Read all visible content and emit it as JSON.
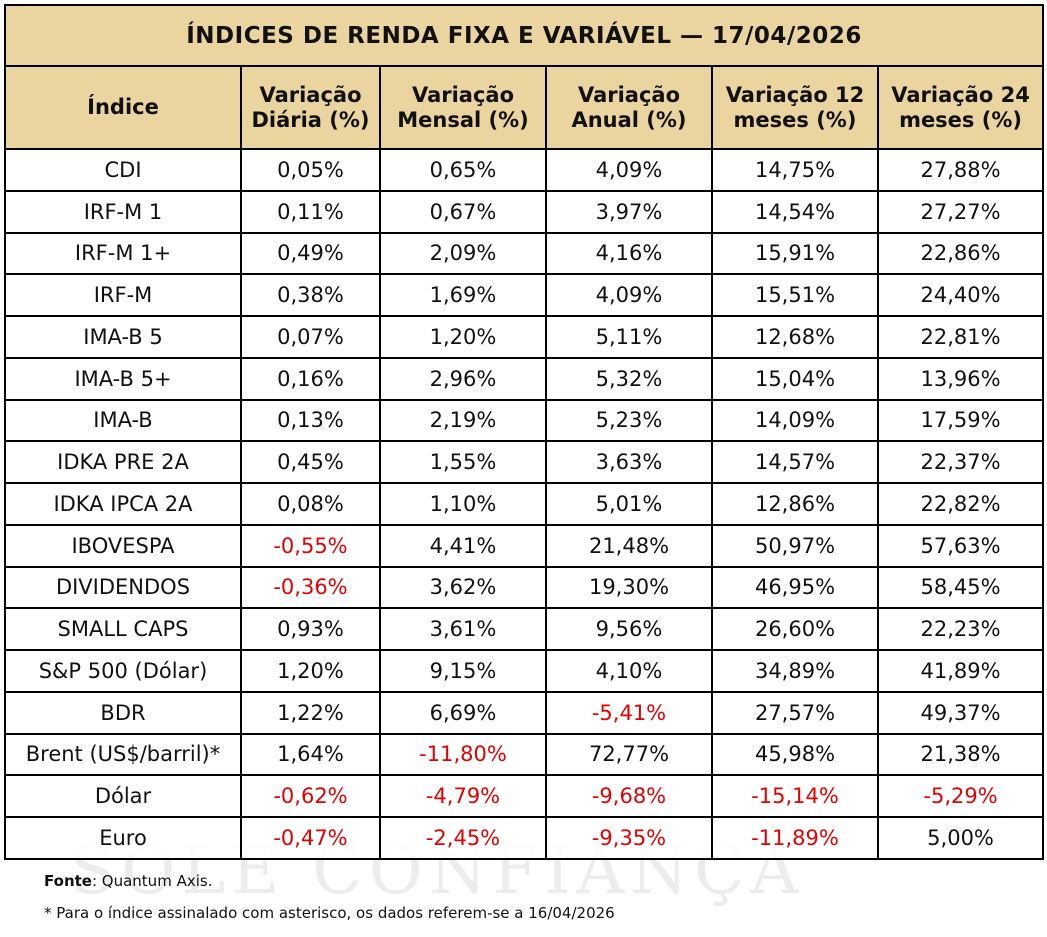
{
  "title": "ÍNDICES DE RENDA FIXA E VARIÁVEL — 17/04/2026",
  "columns": [
    "Índice",
    "Variação Diária (%)",
    "Variação Mensal (%)",
    "Variação Anual (%)",
    "Variação 12 meses (%)",
    "Variação 24 meses (%)"
  ],
  "rows": [
    {
      "name": "CDI",
      "values": [
        "0,05%",
        "0,65%",
        "4,09%",
        "14,75%",
        "27,88%"
      ]
    },
    {
      "name": "IRF-M 1",
      "values": [
        "0,11%",
        "0,67%",
        "3,97%",
        "14,54%",
        "27,27%"
      ]
    },
    {
      "name": "IRF-M 1+",
      "values": [
        "0,49%",
        "2,09%",
        "4,16%",
        "15,91%",
        "22,86%"
      ]
    },
    {
      "name": "IRF-M",
      "values": [
        "0,38%",
        "1,69%",
        "4,09%",
        "15,51%",
        "24,40%"
      ]
    },
    {
      "name": "IMA-B 5",
      "values": [
        "0,07%",
        "1,20%",
        "5,11%",
        "12,68%",
        "22,81%"
      ]
    },
    {
      "name": "IMA-B 5+",
      "values": [
        "0,16%",
        "2,96%",
        "5,32%",
        "15,04%",
        "13,96%"
      ]
    },
    {
      "name": "IMA-B",
      "values": [
        "0,13%",
        "2,19%",
        "5,23%",
        "14,09%",
        "17,59%"
      ]
    },
    {
      "name": "IDKA PRE 2A",
      "values": [
        "0,45%",
        "1,55%",
        "3,63%",
        "14,57%",
        "22,37%"
      ]
    },
    {
      "name": "IDKA IPCA 2A",
      "values": [
        "0,08%",
        "1,10%",
        "5,01%",
        "12,86%",
        "22,82%"
      ]
    },
    {
      "name": "IBOVESPA",
      "values": [
        "-0,55%",
        "4,41%",
        "21,48%",
        "50,97%",
        "57,63%"
      ]
    },
    {
      "name": "DIVIDENDOS",
      "values": [
        "-0,36%",
        "3,62%",
        "19,30%",
        "46,95%",
        "58,45%"
      ]
    },
    {
      "name": "SMALL CAPS",
      "values": [
        "0,93%",
        "3,61%",
        "9,56%",
        "26,60%",
        "22,23%"
      ]
    },
    {
      "name": "S&P 500 (Dólar)",
      "values": [
        "1,20%",
        "9,15%",
        "4,10%",
        "34,89%",
        "41,89%"
      ]
    },
    {
      "name": "BDR",
      "values": [
        "1,22%",
        "6,69%",
        "-5,41%",
        "27,57%",
        "49,37%"
      ]
    },
    {
      "name": "Brent (US$/barril)*",
      "values": [
        "1,64%",
        "-11,80%",
        "72,77%",
        "45,98%",
        "21,38%"
      ]
    },
    {
      "name": "Dólar",
      "values": [
        "-0,62%",
        "-4,79%",
        "-9,68%",
        "-15,14%",
        "-5,29%"
      ]
    },
    {
      "name": "Euro",
      "values": [
        "-0,47%",
        "-2,45%",
        "-9,35%",
        "-11,89%",
        "5,00%"
      ]
    }
  ],
  "source_label": "Fonte",
  "source_text": ": Quantum Axis.",
  "footnote": "* Para o índice assinalado com asterisco, os dados referem-se a 16/04/2026",
  "watermark": "SOLE CONFIANÇA",
  "colors": {
    "header_bg": "#ead4a0",
    "negative": "#e60000",
    "border": "#000000"
  }
}
